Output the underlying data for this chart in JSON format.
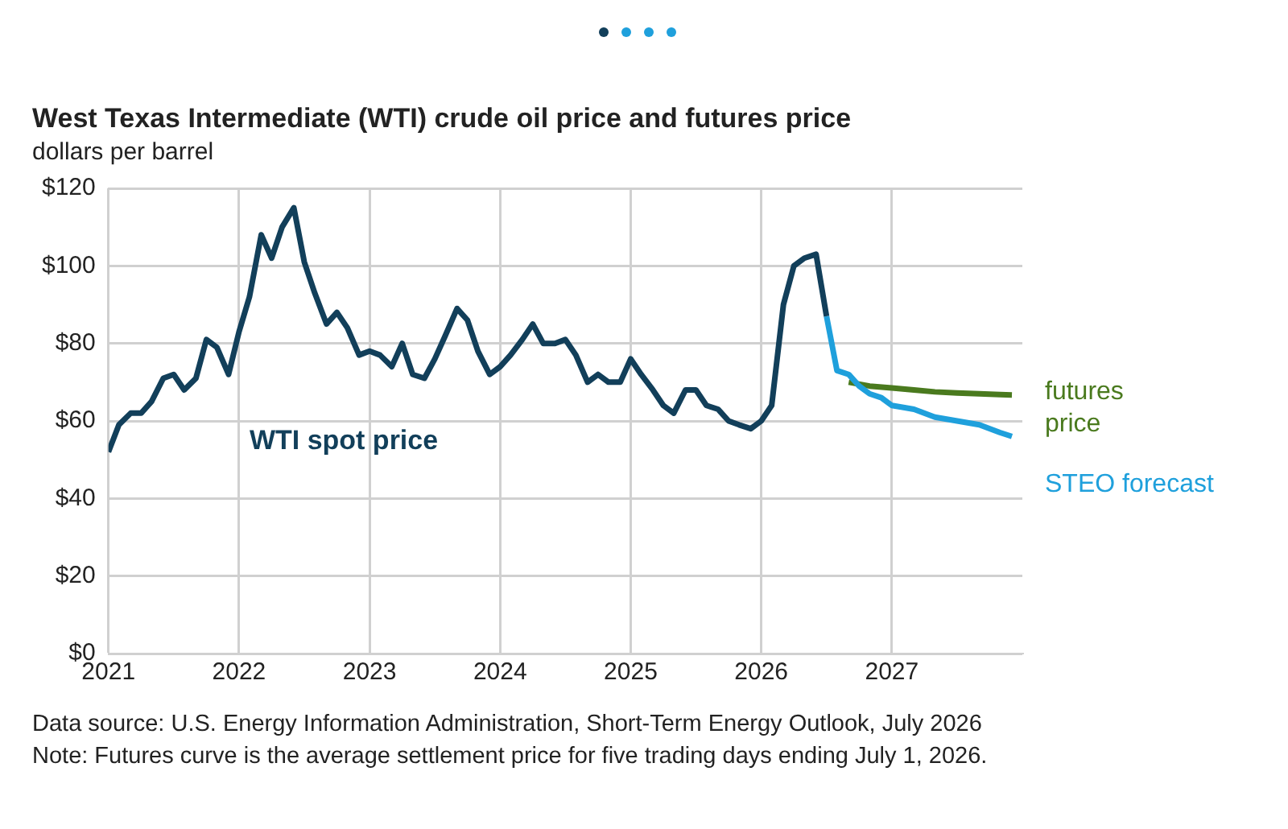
{
  "chart_data": {
    "type": "line",
    "title": "West Texas Intermediate (WTI) crude oil price and futures price",
    "ylabel": "dollars per barrel",
    "xlim": [
      2021,
      2028
    ],
    "xticks": [
      2021,
      2022,
      2023,
      2024,
      2025,
      2026,
      2027
    ],
    "ylim": [
      0,
      120
    ],
    "yticks": [
      {
        "value": 0,
        "label": "$0"
      },
      {
        "value": 20,
        "label": "$20"
      },
      {
        "value": 40,
        "label": "$40"
      },
      {
        "value": 60,
        "label": "$60"
      },
      {
        "value": 80,
        "label": "$80"
      },
      {
        "value": 100,
        "label": "$100"
      },
      {
        "value": 120,
        "label": "$120"
      }
    ],
    "grid": true,
    "legend": false,
    "marker": "none",
    "line_style": "solid",
    "series": [
      {
        "name": "WTI spot price",
        "color": "#123f5a",
        "x": [
          2021,
          2021.08,
          2021.17,
          2021.25,
          2021.33,
          2021.42,
          2021.5,
          2021.58,
          2021.67,
          2021.75,
          2021.83,
          2021.92,
          2022,
          2022.08,
          2022.17,
          2022.25,
          2022.33,
          2022.42,
          2022.5,
          2022.58,
          2022.67,
          2022.75,
          2022.83,
          2022.92,
          2023,
          2023.08,
          2023.17,
          2023.25,
          2023.33,
          2023.42,
          2023.5,
          2023.58,
          2023.67,
          2023.75,
          2023.83,
          2023.92,
          2024,
          2024.08,
          2024.17,
          2024.25,
          2024.33,
          2024.42,
          2024.5,
          2024.58,
          2024.67,
          2024.75,
          2024.83,
          2024.92,
          2025,
          2025.08,
          2025.17,
          2025.25,
          2025.33,
          2025.42,
          2025.5,
          2025.58,
          2025.67,
          2025.75,
          2025.83,
          2025.92,
          2026,
          2026.08,
          2026.17,
          2026.25,
          2026.33,
          2026.42,
          2026.5
        ],
        "values": [
          52,
          59,
          62,
          62,
          65,
          71,
          72,
          68,
          71,
          81,
          79,
          72,
          83,
          92,
          108,
          102,
          110,
          115,
          101,
          93,
          85,
          88,
          84,
          77,
          78,
          77,
          74,
          80,
          72,
          71,
          76,
          82,
          89,
          86,
          78,
          72,
          74,
          77,
          81,
          85,
          80,
          80,
          81,
          77,
          70,
          72,
          70,
          70,
          76,
          72,
          68,
          64,
          62,
          68,
          68,
          64,
          63,
          60,
          59,
          58,
          60,
          64,
          90,
          100,
          102,
          103,
          87
        ]
      },
      {
        "name": "STEO forecast",
        "color": "#1fa0dc",
        "x": [
          2026.5,
          2026.58,
          2026.67,
          2026.75,
          2026.83,
          2026.92,
          2027,
          2027.17,
          2027.33,
          2027.5,
          2027.67,
          2027.83,
          2027.92
        ],
        "values": [
          87,
          73,
          72,
          69,
          67,
          66,
          64,
          63,
          61,
          60,
          59,
          57,
          56
        ]
      },
      {
        "name": "futures price",
        "color": "#4a7a1e",
        "x": [
          2026.67,
          2026.83,
          2027,
          2027.17,
          2027.33,
          2027.5,
          2027.67,
          2027.83,
          2027.92
        ],
        "values": [
          70,
          69,
          68.5,
          68,
          67.5,
          67.2,
          67,
          66.8,
          66.7
        ]
      }
    ],
    "annotations": [
      "Data source: U.S. Energy Information Administration, Short-Term Energy Outlook, July 2026",
      "Note: Futures curve is the average settlement price for five trading days ending July 1, 2026."
    ]
  }
}
